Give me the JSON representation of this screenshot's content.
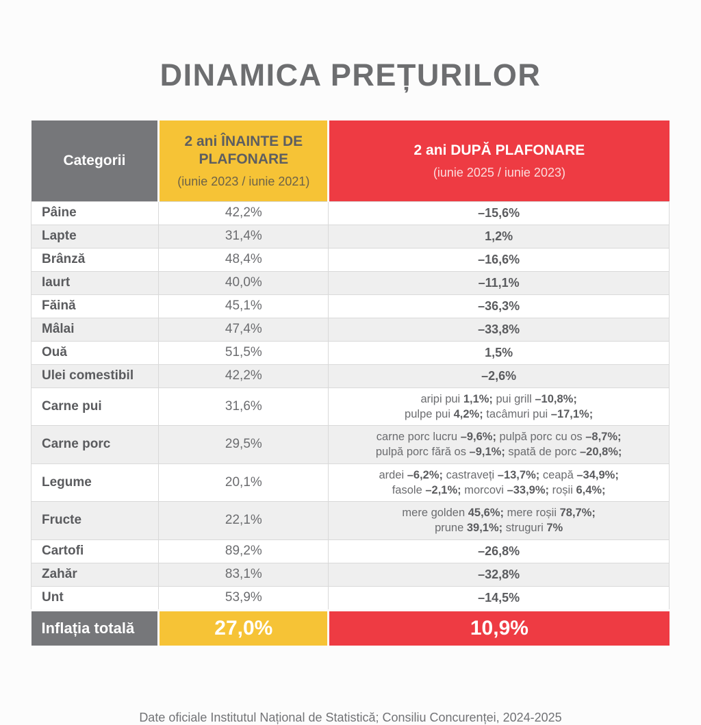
{
  "chart_data": {
    "type": "table",
    "title": "DINAMICA PREȚURILOR",
    "columns": [
      {
        "label": "Categorii",
        "color": "#76777a"
      },
      {
        "label": "2 ani ÎNAINTE DE PLAFONARE",
        "sublabel": "(iunie 2023 / iunie 2021)",
        "color": "#f6c336"
      },
      {
        "label": "2 ani DUPĂ PLAFONARE",
        "sublabel": "(iunie 2025 / iunie 2023)",
        "color": "#ee3b43"
      }
    ],
    "rows": [
      {
        "category": "Pâine",
        "before": "42,2%",
        "after": "–15,6%"
      },
      {
        "category": "Lapte",
        "before": "31,4%",
        "after": "1,2%"
      },
      {
        "category": "Brânză",
        "before": "48,4%",
        "after": "–16,6%"
      },
      {
        "category": "Iaurt",
        "before": "40,0%",
        "after": "–11,1%"
      },
      {
        "category": "Făină",
        "before": "45,1%",
        "after": "–36,3%"
      },
      {
        "category": "Mâlai",
        "before": "47,4%",
        "after": "–33,8%"
      },
      {
        "category": "Ouă",
        "before": "51,5%",
        "after": "1,5%"
      },
      {
        "category": "Ulei comestibil",
        "before": "42,2%",
        "after": "–2,6%"
      },
      {
        "category": "Carne pui",
        "before": "31,6%",
        "after_lines": [
          [
            {
              "t": "aripi pui ",
              "b": false
            },
            {
              "t": "1,1%;",
              "b": true
            },
            {
              "t": " pui grill ",
              "b": false
            },
            {
              "t": "–10,8%;",
              "b": true
            }
          ],
          [
            {
              "t": "pulpe pui ",
              "b": false
            },
            {
              "t": "4,2%;",
              "b": true
            },
            {
              "t": " tacâmuri pui ",
              "b": false
            },
            {
              "t": "–17,1%;",
              "b": true
            }
          ]
        ]
      },
      {
        "category": "Carne porc",
        "before": "29,5%",
        "after_lines": [
          [
            {
              "t": "carne porc lucru ",
              "b": false
            },
            {
              "t": "–9,6%;",
              "b": true
            },
            {
              "t": " pulpă porc cu os ",
              "b": false
            },
            {
              "t": "–8,7%;",
              "b": true
            }
          ],
          [
            {
              "t": "pulpă porc fără os ",
              "b": false
            },
            {
              "t": "–9,1%;",
              "b": true
            },
            {
              "t": " spată de porc ",
              "b": false
            },
            {
              "t": "–20,8%;",
              "b": true
            }
          ]
        ]
      },
      {
        "category": "Legume",
        "before": "20,1%",
        "after_lines": [
          [
            {
              "t": "ardei ",
              "b": false
            },
            {
              "t": "–6,2%;",
              "b": true
            },
            {
              "t": " castraveți ",
              "b": false
            },
            {
              "t": "–13,7%;",
              "b": true
            },
            {
              "t": " ceapă ",
              "b": false
            },
            {
              "t": "–34,9%;",
              "b": true
            }
          ],
          [
            {
              "t": "fasole ",
              "b": false
            },
            {
              "t": "–2,1%;",
              "b": true
            },
            {
              "t": " morcovi ",
              "b": false
            },
            {
              "t": "–33,9%;",
              "b": true
            },
            {
              "t": " roșii ",
              "b": false
            },
            {
              "t": "6,4%;",
              "b": true
            }
          ]
        ]
      },
      {
        "category": "Fructe",
        "before": "22,1%",
        "after_lines": [
          [
            {
              "t": "mere golden ",
              "b": false
            },
            {
              "t": "45,6%;",
              "b": true
            },
            {
              "t": " mere roșii ",
              "b": false
            },
            {
              "t": "78,7%;",
              "b": true
            }
          ],
          [
            {
              "t": "prune ",
              "b": false
            },
            {
              "t": "39,1%;",
              "b": true
            },
            {
              "t": " struguri ",
              "b": false
            },
            {
              "t": "7%",
              "b": true
            }
          ]
        ]
      },
      {
        "category": "Cartofi",
        "before": "89,2%",
        "after": "–26,8%"
      },
      {
        "category": "Zahăr",
        "before": "83,1%",
        "after": "–32,8%"
      },
      {
        "category": "Unt",
        "before": "53,9%",
        "after": "–14,5%"
      }
    ],
    "total": {
      "label": "Inflația totală",
      "before": "27,0%",
      "after": "10,9%"
    }
  },
  "footer": {
    "text": "Date oficiale Institutul Național de Statistică; Consiliu Concurenței, 2024-2025"
  }
}
